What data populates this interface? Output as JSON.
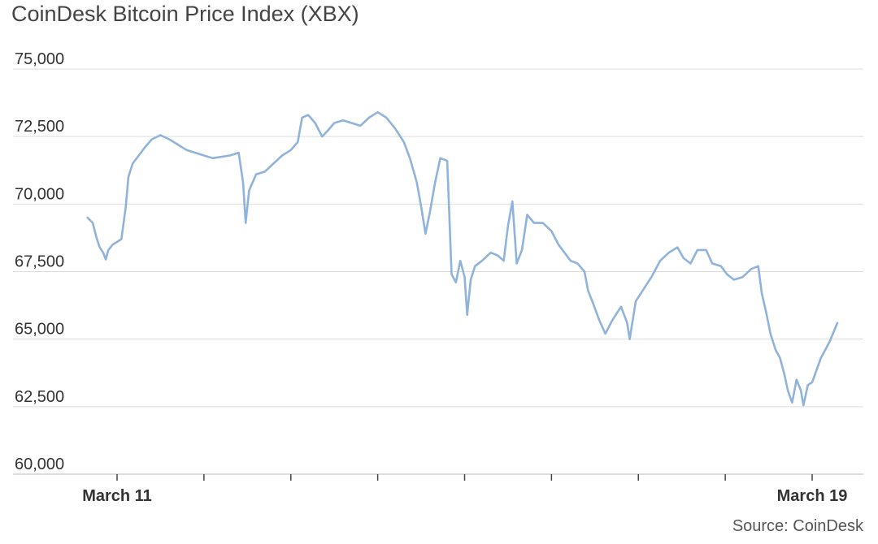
{
  "chart_data": {
    "type": "line",
    "title": "CoinDesk Bitcoin Price Index (XBX)",
    "source": "Source: CoinDesk",
    "xlabel": "",
    "ylabel": "",
    "ylim": [
      60000,
      75000
    ],
    "y_ticks": [
      "60,000",
      "62,500",
      "65,000",
      "67,500",
      "70,000",
      "72,500",
      "75,000"
    ],
    "y_tick_values": [
      60000,
      62500,
      65000,
      67500,
      70000,
      72500,
      75000
    ],
    "x_range_days": [
      10.66,
      19.29
    ],
    "x_ticks": [
      {
        "day": 11,
        "label": "March 11"
      },
      {
        "day": 12,
        "label": ""
      },
      {
        "day": 13,
        "label": ""
      },
      {
        "day": 14,
        "label": ""
      },
      {
        "day": 15,
        "label": ""
      },
      {
        "day": 16,
        "label": ""
      },
      {
        "day": 17,
        "label": ""
      },
      {
        "day": 18,
        "label": ""
      },
      {
        "day": 19,
        "label": "March 19"
      }
    ],
    "grid": true,
    "legend": "none",
    "color": "#8fb3db",
    "series": [
      {
        "values": [
          [
            10.66,
            69500
          ],
          [
            10.72,
            69300
          ],
          [
            10.76,
            68800
          ],
          [
            10.8,
            68400
          ],
          [
            10.84,
            68200
          ],
          [
            10.87,
            67950
          ],
          [
            10.9,
            68300
          ],
          [
            10.95,
            68500
          ],
          [
            11.0,
            68600
          ],
          [
            11.05,
            68700
          ],
          [
            11.1,
            69900
          ],
          [
            11.13,
            71000
          ],
          [
            11.18,
            71500
          ],
          [
            11.25,
            71800
          ],
          [
            11.32,
            72100
          ],
          [
            11.4,
            72400
          ],
          [
            11.5,
            72550
          ],
          [
            11.6,
            72400
          ],
          [
            11.7,
            72200
          ],
          [
            11.8,
            72000
          ],
          [
            11.9,
            71900
          ],
          [
            12.0,
            71800
          ],
          [
            12.1,
            71700
          ],
          [
            12.2,
            71750
          ],
          [
            12.3,
            71800
          ],
          [
            12.4,
            71900
          ],
          [
            12.45,
            70800
          ],
          [
            12.48,
            69300
          ],
          [
            12.52,
            70500
          ],
          [
            12.6,
            71100
          ],
          [
            12.7,
            71200
          ],
          [
            12.8,
            71500
          ],
          [
            12.9,
            71800
          ],
          [
            13.0,
            72000
          ],
          [
            13.08,
            72300
          ],
          [
            13.13,
            73200
          ],
          [
            13.2,
            73300
          ],
          [
            13.28,
            73000
          ],
          [
            13.36,
            72500
          ],
          [
            13.42,
            72700
          ],
          [
            13.5,
            73000
          ],
          [
            13.6,
            73100
          ],
          [
            13.7,
            73000
          ],
          [
            13.8,
            72900
          ],
          [
            13.9,
            73200
          ],
          [
            14.0,
            73400
          ],
          [
            14.1,
            73200
          ],
          [
            14.2,
            72800
          ],
          [
            14.3,
            72300
          ],
          [
            14.37,
            71700
          ],
          [
            14.45,
            70800
          ],
          [
            14.5,
            69900
          ],
          [
            14.55,
            68900
          ],
          [
            14.6,
            69700
          ],
          [
            14.66,
            70800
          ],
          [
            14.72,
            71700
          ],
          [
            14.8,
            71600
          ],
          [
            14.85,
            67400
          ],
          [
            14.9,
            67100
          ],
          [
            14.95,
            67900
          ],
          [
            15.0,
            67300
          ],
          [
            15.03,
            65900
          ],
          [
            15.07,
            67200
          ],
          [
            15.12,
            67700
          ],
          [
            15.2,
            67900
          ],
          [
            15.3,
            68200
          ],
          [
            15.38,
            68100
          ],
          [
            15.45,
            67900
          ],
          [
            15.5,
            69200
          ],
          [
            15.55,
            70100
          ],
          [
            15.6,
            67800
          ],
          [
            15.66,
            68300
          ],
          [
            15.72,
            69600
          ],
          [
            15.8,
            69300
          ],
          [
            15.9,
            69300
          ],
          [
            16.0,
            69000
          ],
          [
            16.08,
            68500
          ],
          [
            16.15,
            68200
          ],
          [
            16.22,
            67900
          ],
          [
            16.3,
            67800
          ],
          [
            16.38,
            67500
          ],
          [
            16.42,
            66800
          ],
          [
            16.47,
            66400
          ],
          [
            16.55,
            65700
          ],
          [
            16.62,
            65200
          ],
          [
            16.7,
            65700
          ],
          [
            16.8,
            66200
          ],
          [
            16.87,
            65600
          ],
          [
            16.9,
            65000
          ],
          [
            16.97,
            66400
          ],
          [
            17.05,
            66800
          ],
          [
            17.15,
            67300
          ],
          [
            17.25,
            67900
          ],
          [
            17.35,
            68200
          ],
          [
            17.45,
            68400
          ],
          [
            17.52,
            68000
          ],
          [
            17.6,
            67800
          ],
          [
            17.68,
            68300
          ],
          [
            17.78,
            68300
          ],
          [
            17.85,
            67800
          ],
          [
            17.95,
            67700
          ],
          [
            18.02,
            67400
          ],
          [
            18.1,
            67200
          ],
          [
            18.2,
            67300
          ],
          [
            18.3,
            67600
          ],
          [
            18.38,
            67700
          ],
          [
            18.42,
            66700
          ],
          [
            18.47,
            66000
          ],
          [
            18.52,
            65200
          ],
          [
            18.58,
            64600
          ],
          [
            18.63,
            64300
          ],
          [
            18.68,
            63700
          ],
          [
            18.72,
            63100
          ],
          [
            18.77,
            62650
          ],
          [
            18.82,
            63500
          ],
          [
            18.87,
            63100
          ],
          [
            18.9,
            62550
          ],
          [
            18.95,
            63300
          ],
          [
            19.0,
            63400
          ],
          [
            19.1,
            64300
          ],
          [
            19.2,
            64900
          ],
          [
            19.29,
            65600
          ]
        ]
      }
    ]
  }
}
